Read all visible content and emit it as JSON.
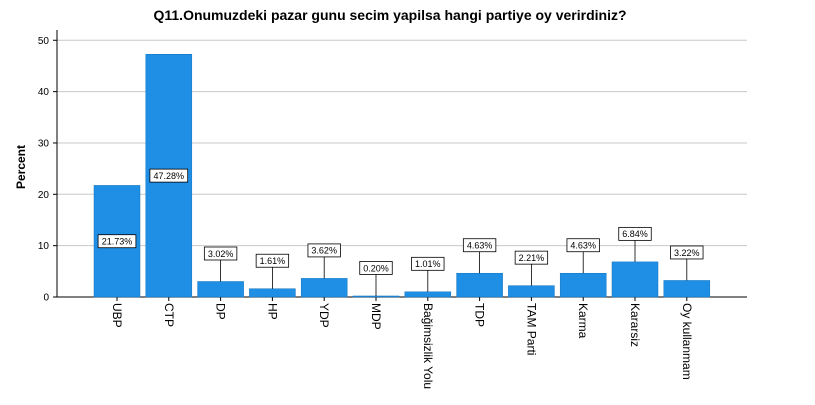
{
  "chart_data": {
    "type": "bar",
    "title": "Q11.Onumuzdeki pazar gunu secim yapilsa hangi partiye oy verirdiniz?",
    "xlabel": "",
    "ylabel": "Percent",
    "ylim": [
      0,
      52
    ],
    "yticks": [
      0,
      10,
      20,
      30,
      40,
      50
    ],
    "grid": true,
    "bar_color": "#1f8fe6",
    "categories": [
      "UBP",
      "CTP",
      "DP",
      "HP",
      "YDP",
      "MDP",
      "Bağimsizlik Yolu",
      "TDP",
      "TAM Parti",
      "Karma",
      "Kararsiz",
      "Oy kullanmam"
    ],
    "values": [
      21.73,
      47.28,
      3.02,
      1.61,
      3.62,
      0.2,
      1.01,
      4.63,
      2.21,
      4.63,
      6.84,
      3.22
    ],
    "data_labels": [
      "21.73%",
      "47.28%",
      "3.02%",
      "1.61%",
      "3.62%",
      "0.20%",
      "1.01%",
      "4.63%",
      "2.21%",
      "4.63%",
      "6.84%",
      "3.22%"
    ]
  }
}
